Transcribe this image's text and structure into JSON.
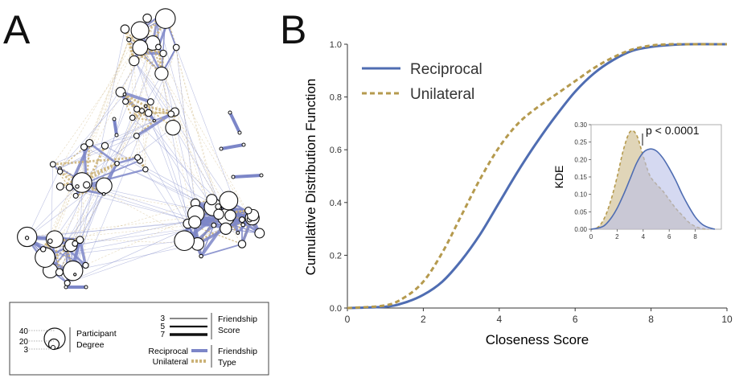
{
  "panels": {
    "a": "A",
    "b": "B"
  },
  "network_legend": {
    "degree_title_1": "Participant",
    "degree_title_2": "Degree",
    "degree_values": [
      "40",
      "20",
      "3"
    ],
    "score_values": [
      "3",
      "5",
      "7"
    ],
    "score_title_1": "Friendship",
    "score_title_2": "Score",
    "type_labels": [
      "Reciprocal",
      "Unilateral"
    ],
    "type_title_1": "Friendship",
    "type_title_2": "Type"
  },
  "colors": {
    "reciprocal": "#4f6db2",
    "unilateral": "#b59a4e",
    "network_reciprocal": "#7c86c8",
    "network_unilateral": "#cbb277"
  },
  "chart_data": [
    {
      "type": "line",
      "xlabel": "Closeness Score",
      "ylabel": "Cumulative Distribution Function",
      "xlim": [
        0,
        10
      ],
      "ylim": [
        0,
        1.0
      ],
      "xticks": [
        "0",
        "2",
        "4",
        "6",
        "8",
        "10"
      ],
      "yticks": [
        "0.0",
        "0.2",
        "0.4",
        "0.6",
        "0.8",
        "1.0"
      ],
      "legend_position": "top-left",
      "series": [
        {
          "name": "Reciprocal",
          "style": "solid",
          "x": [
            0,
            1,
            1.5,
            2,
            2.5,
            3,
            3.5,
            4,
            4.5,
            5,
            5.5,
            6,
            6.5,
            7,
            7.5,
            8,
            8.5,
            9,
            10
          ],
          "y": [
            0,
            0.005,
            0.02,
            0.05,
            0.1,
            0.18,
            0.28,
            0.4,
            0.52,
            0.63,
            0.73,
            0.82,
            0.89,
            0.94,
            0.975,
            0.99,
            0.997,
            1.0,
            1.0
          ]
        },
        {
          "name": "Unilateral",
          "style": "dashed",
          "x": [
            0,
            1,
            1.5,
            2,
            2.5,
            3,
            3.5,
            4,
            4.5,
            5,
            5.5,
            6,
            6.5,
            7,
            7.5,
            8,
            8.5,
            9,
            10
          ],
          "y": [
            0,
            0.01,
            0.04,
            0.1,
            0.21,
            0.35,
            0.49,
            0.61,
            0.7,
            0.76,
            0.81,
            0.86,
            0.91,
            0.95,
            0.98,
            0.995,
            1.0,
            1.0,
            1.0
          ]
        }
      ]
    },
    {
      "type": "area",
      "ylabel": "KDE",
      "xlim": [
        0,
        10
      ],
      "ylim": [
        0,
        0.3
      ],
      "xticks": [
        "0",
        "2",
        "4",
        "6",
        "8"
      ],
      "yticks": [
        "0.00",
        "0.05",
        "0.10",
        "0.15",
        "0.20",
        "0.25",
        "0.30"
      ],
      "annotation": "p < 0.0001",
      "series": [
        {
          "name": "Reciprocal",
          "x": [
            0,
            0.5,
            1,
            1.5,
            2,
            2.5,
            3,
            3.5,
            4,
            4.5,
            5,
            5.5,
            6,
            6.5,
            7,
            7.5,
            8,
            8.5,
            9,
            9.5
          ],
          "y": [
            0,
            0.003,
            0.01,
            0.03,
            0.06,
            0.1,
            0.145,
            0.19,
            0.22,
            0.23,
            0.225,
            0.205,
            0.175,
            0.14,
            0.1,
            0.065,
            0.035,
            0.015,
            0.005,
            0
          ]
        },
        {
          "name": "Unilateral",
          "x": [
            0,
            0.5,
            1,
            1.5,
            2,
            2.5,
            3,
            3.5,
            4,
            4.5,
            5,
            5.5,
            6,
            6.5,
            7,
            7.5,
            8,
            8.5,
            9
          ],
          "y": [
            0,
            0.005,
            0.03,
            0.08,
            0.15,
            0.23,
            0.28,
            0.27,
            0.21,
            0.155,
            0.13,
            0.11,
            0.085,
            0.06,
            0.04,
            0.02,
            0.008,
            0.002,
            0
          ]
        }
      ]
    }
  ]
}
